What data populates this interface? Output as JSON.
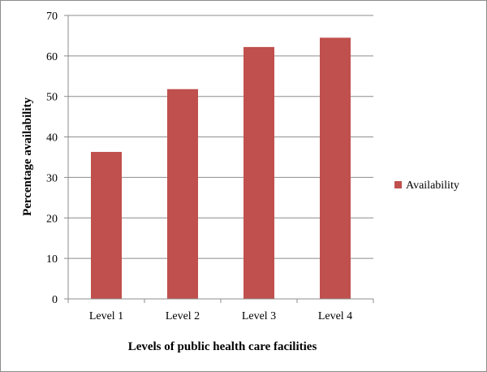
{
  "chart_data": {
    "type": "bar",
    "title": "",
    "categories": [
      "Level 1",
      "Level 2",
      "Level 3",
      "Level 4"
    ],
    "series": [
      {
        "name": "Availability",
        "values": [
          36.3,
          51.8,
          62.2,
          64.5
        ]
      }
    ],
    "xlabel": "Levels of public health care facilities",
    "ylabel": "Percentage availability",
    "ylim": [
      0,
      70
    ],
    "yticks": [
      0,
      10,
      20,
      30,
      40,
      50,
      60,
      70
    ],
    "grid": true,
    "legend": "right",
    "colors": {
      "bar": "#c0504d",
      "grid": "#8c8c8c",
      "axis": "#8c8c8c"
    }
  }
}
